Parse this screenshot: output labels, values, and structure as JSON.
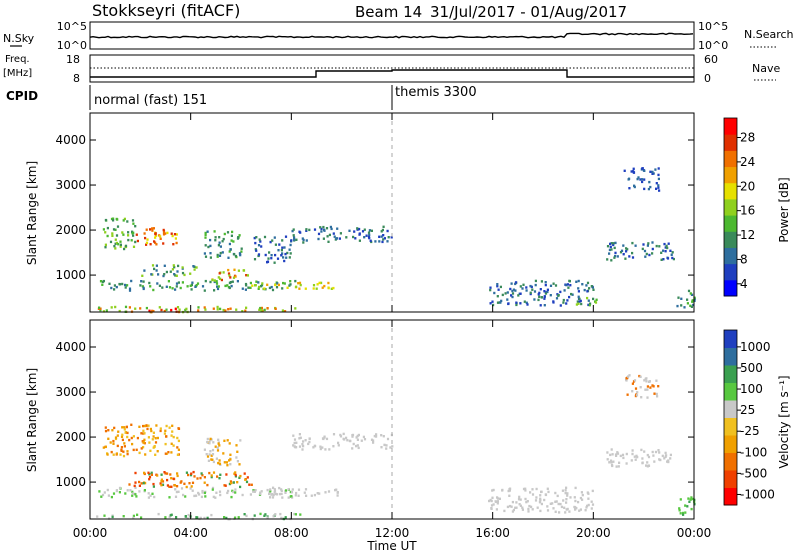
{
  "header": {
    "station": "Stokkseyri (fitACF)",
    "beam": "Beam 14",
    "date_range": "31/Jul/2017 - 01/Aug/2017"
  },
  "panels": {
    "nsky": {
      "label": "N.Sky",
      "left_ticks": [
        "10^5",
        "10^0"
      ],
      "right_ticks": [
        "10^5",
        "10^0"
      ],
      "right_label": "N.Search"
    },
    "freq": {
      "label_top": "Freq.",
      "label_unit": "[MHz]",
      "left_ticks": [
        "18",
        "8"
      ],
      "right_ticks": [
        "60",
        "0"
      ],
      "right_label": "Nave"
    },
    "cpid": {
      "label": "CPID",
      "segments": [
        "normal (fast) 151",
        "themis 3300"
      ]
    }
  },
  "chart_data": [
    {
      "type": "heatmap",
      "title": "",
      "ylabel": "Slant Range [km]",
      "xlabel": "",
      "yticks": [
        "4000",
        "3000",
        "2000",
        "1000"
      ],
      "ylim": [
        180,
        4600
      ],
      "xlim": [
        0,
        24
      ],
      "colorbar": {
        "label": "Power [dB]",
        "ticks": [
          "28",
          "24",
          "20",
          "16",
          "12",
          "8",
          "4"
        ],
        "colors": [
          "#0000ff",
          "#1f3fbf",
          "#2e6e9e",
          "#3a8a5a",
          "#4cb830",
          "#8fd01e",
          "#e6e000",
          "#f0a000",
          "#f07000",
          "#e03000",
          "#ff0000"
        ]
      },
      "clusters": [
        {
          "t": [
            0.1,
            8.5
          ],
          "r": [
            200,
            320
          ],
          "c": [
            8,
            4,
            5
          ]
        },
        {
          "t": [
            2.3,
            3.6
          ],
          "r": [
            200,
            320
          ],
          "c": [
            10,
            9,
            8
          ]
        },
        {
          "t": [
            0.3,
            8.2
          ],
          "r": [
            680,
            900
          ],
          "c": [
            4,
            2,
            3
          ]
        },
        {
          "t": [
            6.4,
            10.0
          ],
          "r": [
            720,
            870
          ],
          "c": [
            5,
            6,
            7
          ]
        },
        {
          "t": [
            4.8,
            6.4
          ],
          "r": [
            900,
            1150
          ],
          "c": [
            5,
            7,
            9
          ]
        },
        {
          "t": [
            2.0,
            4.2
          ],
          "r": [
            1000,
            1250
          ],
          "c": [
            2,
            3,
            5
          ]
        },
        {
          "t": [
            1.8,
            3.5
          ],
          "r": [
            1700,
            2100
          ],
          "c": [
            6,
            8,
            9
          ]
        },
        {
          "t": [
            0.5,
            1.8
          ],
          "r": [
            1600,
            2300
          ],
          "c": [
            3,
            5,
            4
          ]
        },
        {
          "t": [
            4.5,
            6.0
          ],
          "r": [
            1400,
            2000
          ],
          "c": [
            3,
            2,
            4
          ]
        },
        {
          "t": [
            8.0,
            12.0
          ],
          "r": [
            1750,
            2100
          ],
          "c": [
            2,
            1,
            3
          ]
        },
        {
          "t": [
            6.5,
            8.0
          ],
          "r": [
            1300,
            1900
          ],
          "c": [
            2,
            3,
            1
          ]
        },
        {
          "t": [
            15.8,
            20.0
          ],
          "r": [
            350,
            900
          ],
          "c": [
            2,
            1,
            3
          ]
        },
        {
          "t": [
            19.3,
            20.1
          ],
          "r": [
            330,
            520
          ],
          "c": [
            4,
            5,
            3
          ]
        },
        {
          "t": [
            20.5,
            23.2
          ],
          "r": [
            1350,
            1750
          ],
          "c": [
            2,
            1,
            3
          ]
        },
        {
          "t": [
            21.2,
            22.6
          ],
          "r": [
            2900,
            3400
          ],
          "c": [
            1,
            2
          ]
        },
        {
          "t": [
            23.2,
            24.0
          ],
          "r": [
            300,
            700
          ],
          "c": [
            3,
            4,
            2
          ]
        }
      ]
    },
    {
      "type": "heatmap",
      "title": "",
      "ylabel": "Slant Range [km]",
      "xlabel": "Time UT",
      "xticks": [
        "00:00",
        "04:00",
        "08:00",
        "12:00",
        "16:00",
        "20:00",
        "00:00"
      ],
      "yticks": [
        "4000",
        "3000",
        "2000",
        "1000"
      ],
      "ylim": [
        180,
        4600
      ],
      "xlim": [
        0,
        24
      ],
      "colorbar": {
        "label": "Velocity [m s⁻¹]",
        "ticks": [
          "1000",
          "500",
          "100",
          "25",
          "-25",
          "-100",
          "-500",
          "-1000"
        ],
        "colors": [
          "#ff0000",
          "#f04000",
          "#f07000",
          "#f0a000",
          "#f0c020",
          "#c8c8c8",
          "#58c840",
          "#3aa050",
          "#2e6e9e",
          "#1f3fbf"
        ]
      },
      "clusters": [
        {
          "t": [
            0.1,
            8.5
          ],
          "r": [
            200,
            320
          ],
          "c": [
            6,
            7,
            5
          ]
        },
        {
          "t": [
            0.3,
            8.2
          ],
          "r": [
            680,
            900
          ],
          "c": [
            5,
            5,
            6
          ]
        },
        {
          "t": [
            6.4,
            10.0
          ],
          "r": [
            720,
            870
          ],
          "c": [
            5,
            5
          ]
        },
        {
          "t": [
            1.5,
            6.4
          ],
          "r": [
            900,
            1250
          ],
          "c": [
            2,
            3,
            1,
            7
          ]
        },
        {
          "t": [
            0.5,
            3.5
          ],
          "r": [
            1600,
            2300
          ],
          "c": [
            3,
            4,
            2
          ]
        },
        {
          "t": [
            4.5,
            6.0
          ],
          "r": [
            1400,
            2000
          ],
          "c": [
            5,
            3
          ]
        },
        {
          "t": [
            8.0,
            12.0
          ],
          "r": [
            1750,
            2100
          ],
          "c": [
            5,
            5
          ]
        },
        {
          "t": [
            15.8,
            20.0
          ],
          "r": [
            350,
            900
          ],
          "c": [
            5,
            5
          ]
        },
        {
          "t": [
            20.5,
            23.2
          ],
          "r": [
            1350,
            1750
          ],
          "c": [
            5,
            5
          ]
        },
        {
          "t": [
            21.2,
            22.6
          ],
          "r": [
            2900,
            3400
          ],
          "c": [
            5,
            2
          ]
        },
        {
          "t": [
            23.2,
            24.0
          ],
          "r": [
            300,
            700
          ],
          "c": [
            6,
            7
          ]
        }
      ]
    }
  ]
}
